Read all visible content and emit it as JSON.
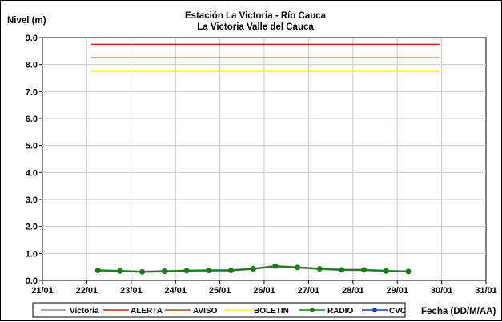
{
  "chart_data": {
    "type": "line",
    "title": "Estación La Victoria - Río Cauca",
    "subtitle": "La Victoria Valle del Cauca",
    "ylabel": "Nivel (m)",
    "xlabel": "Fecha (DD/M/AA)",
    "ylim": [
      0,
      9
    ],
    "yticks": [
      "0.0",
      "1.0",
      "2.0",
      "3.0",
      "4.0",
      "5.0",
      "6.0",
      "7.0",
      "8.0",
      "9.0"
    ],
    "xlim": [
      21,
      31
    ],
    "xticks": [
      "21/01",
      "22/01",
      "23/01",
      "24/01",
      "25/01",
      "26/01",
      "27/01",
      "28/01",
      "29/01",
      "30/01",
      "31/01"
    ],
    "grid": true,
    "legend_position": "bottom",
    "series": [
      {
        "name": "Victoria",
        "color": "#a6a6a6",
        "style": "line",
        "x": [
          22.25,
          22.75,
          23.25,
          23.75,
          24.25,
          24.75,
          25.25,
          25.75,
          26.25,
          26.75,
          27.25,
          27.75,
          28.25,
          28.75,
          29.25
        ],
        "y": [
          0.37,
          0.35,
          0.32,
          0.34,
          0.36,
          0.37,
          0.37,
          0.43,
          0.53,
          0.48,
          0.43,
          0.39,
          0.39,
          0.35,
          0.33
        ]
      },
      {
        "name": "ALERTA",
        "color": "#e31a1c",
        "style": "line",
        "x": [
          22.1,
          29.95
        ],
        "y": [
          8.75,
          8.75
        ]
      },
      {
        "name": "AVISO",
        "color": "#a0522d",
        "style": "line",
        "x": [
          22.1,
          29.95
        ],
        "y": [
          8.25,
          8.25
        ]
      },
      {
        "name": "BOLETIN",
        "color": "#ffff00",
        "style": "line",
        "x": [
          22.1,
          29.95
        ],
        "y": [
          7.75,
          7.75
        ]
      },
      {
        "name": "RADIO",
        "color": "#1b7a1b",
        "style": "line-marker",
        "x": [
          22.25,
          22.75,
          23.25,
          23.75,
          24.25,
          24.75,
          25.25,
          25.75,
          26.25,
          26.75,
          27.25,
          27.75,
          28.25,
          28.75,
          29.25
        ],
        "y": [
          0.37,
          0.35,
          0.32,
          0.34,
          0.36,
          0.37,
          0.37,
          0.43,
          0.53,
          0.48,
          0.43,
          0.39,
          0.39,
          0.35,
          0.33
        ]
      },
      {
        "name": "CVC",
        "color": "#1f3fbf",
        "style": "line-marker",
        "x": [],
        "y": []
      }
    ]
  }
}
